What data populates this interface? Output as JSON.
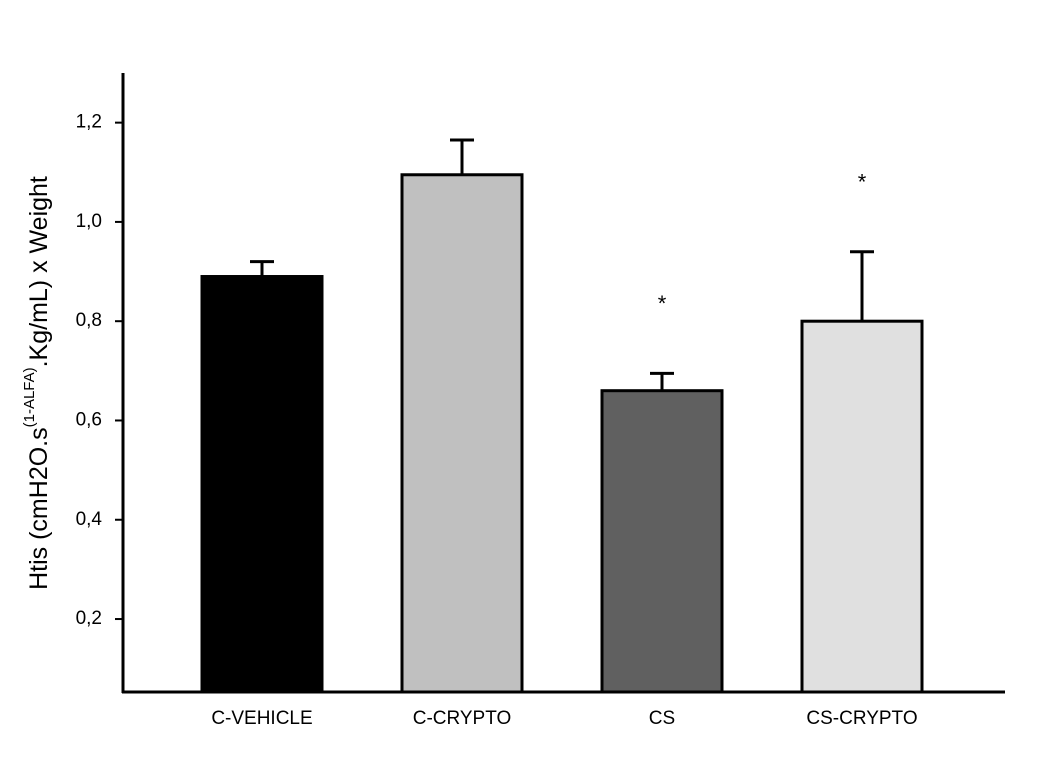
{
  "chart_data": {
    "type": "bar",
    "y_label": {
      "main": "Htis (cmH2O.s",
      "superscript": "(1-ALFA)",
      "rest": ".Kg/mL) x Weight"
    },
    "categories": [
      "C-VEHICLE",
      "C-CRYPTO",
      "CS",
      "CS-CRYPTO"
    ],
    "values": [
      0.89,
      1.095,
      0.66,
      0.8
    ],
    "errors": [
      0.03,
      0.07,
      0.035,
      0.14
    ],
    "significance": [
      null,
      null,
      "*",
      "*"
    ],
    "colors": [
      "#000000",
      "#c0c0c0",
      "#606060",
      "#e0e0e0"
    ],
    "ylim": [
      0.053,
      1.3
    ],
    "yticks": [
      {
        "value": 0.2,
        "label": "0,2"
      },
      {
        "value": 0.4,
        "label": "0,4"
      },
      {
        "value": 0.6,
        "label": "0,6"
      },
      {
        "value": 0.8,
        "label": "0,8"
      },
      {
        "value": 1.0,
        "label": "1,0"
      },
      {
        "value": 1.2,
        "label": "1,2"
      }
    ],
    "grid": false
  }
}
